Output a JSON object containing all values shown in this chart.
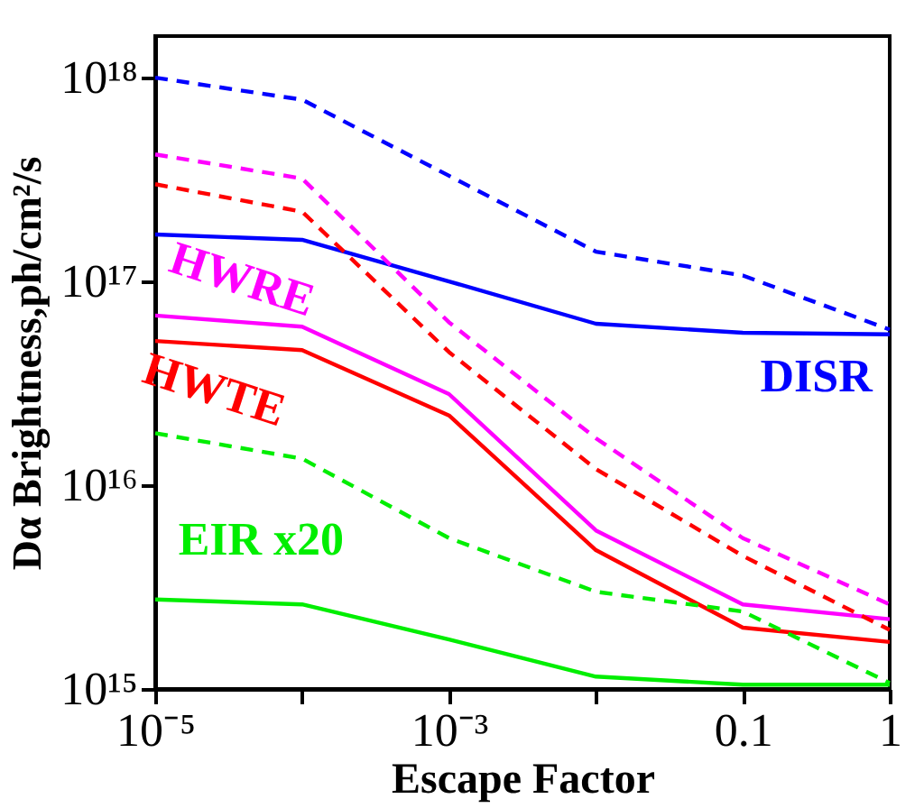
{
  "chart_data": {
    "type": "line",
    "xlabel": "Escape Factor",
    "ylabel": "Dα Brightness,ph/cm²/s",
    "x": [
      1e-05,
      0.0001,
      0.001,
      0.01,
      0.1,
      1
    ],
    "log": "xy",
    "grid": false,
    "marker": "none",
    "xlim": [
      1e-05,
      1
    ],
    "ylim": [
      1000000000000000.0,
      1.6e+18
    ],
    "xticks": [
      {
        "value": 1e-05,
        "label": "10⁻⁵"
      },
      {
        "value": 0.0001,
        "label": null
      },
      {
        "value": 0.001,
        "label": "10⁻³"
      },
      {
        "value": 0.01,
        "label": null
      },
      {
        "value": 0.1,
        "label": "0.1"
      },
      1
    ],
    "yticks": [
      {
        "value": 1000000000000000.0,
        "label": "10¹⁵"
      },
      {
        "value": 1e+16,
        "label": "10¹⁶"
      },
      {
        "value": 1e+17,
        "label": "10¹⁷"
      },
      {
        "value": 1e+18,
        "label": "10¹⁸"
      }
    ],
    "series": [
      {
        "color": "#0000ff",
        "line_style": "dashed",
        "values": [
          1e+18,
          7.8e+17,
          3.3e+17,
          1.4e+17,
          1.07e+17,
          5.8e+16
        ]
      },
      {
        "name": "DISR",
        "color": "#0000ff",
        "line_style": "solid",
        "values": [
          1.7e+17,
          1.6e+17,
          1e+17,
          6.2e+16,
          5.6e+16,
          5.5e+16
        ]
      },
      {
        "color": "#ff00ff",
        "line_style": "dashed",
        "values": [
          4.2e+17,
          3.2e+17,
          6.3e+16,
          1.7e+16,
          5500000000000000.0,
          2600000000000000.0
        ]
      },
      {
        "name": "HWRE",
        "color": "#ff00ff",
        "line_style": "solid",
        "values": [
          6.8e+16,
          6e+16,
          2.8e+16,
          6000000000000000.0,
          2600000000000000.0,
          2200000000000000.0
        ]
      },
      {
        "color": "#ff0000",
        "line_style": "dashed",
        "values": [
          3e+17,
          2.2e+17,
          4.5e+16,
          1.2e+16,
          4500000000000000.0,
          1950000000000000.0
        ]
      },
      {
        "name": "HWTE",
        "color": "#ff0000",
        "line_style": "solid",
        "values": [
          5.1e+16,
          4.6e+16,
          2.2e+16,
          4800000000000000.0,
          2000000000000000.0,
          1700000000000000.0
        ]
      },
      {
        "color": "#00ee00",
        "line_style": "dashed",
        "values": [
          1.8e+16,
          1.35e+16,
          5500000000000000.0,
          3000000000000000.0,
          2400000000000000.0,
          1070000000000000.0
        ]
      },
      {
        "name": "EIR x20",
        "color": "#00ee00",
        "line_style": "solid",
        "values": [
          2750000000000000.0,
          2600000000000000.0,
          1750000000000000.0,
          1150000000000000.0,
          1050000000000000.0,
          1050000000000000.0
        ]
      }
    ]
  }
}
